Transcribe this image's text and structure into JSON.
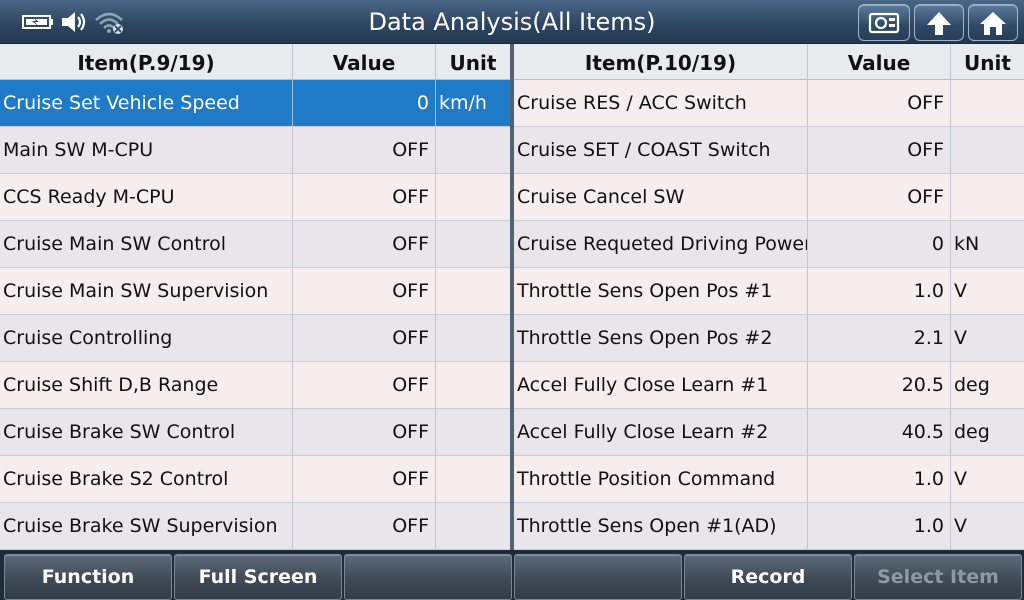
{
  "title": "Data Analysis(All Items)",
  "status_icons": [
    "battery-icon",
    "speaker-icon",
    "wifi-icon"
  ],
  "toolbar_icons": [
    "screenshot-icon",
    "up-arrow-icon",
    "home-icon"
  ],
  "colors": {
    "selected_row": "#1f7bc8",
    "title_bar": "#2e4763",
    "disabled_text": "#8f98a3"
  },
  "left_table": {
    "headers": {
      "item": "Item(P.9/19)",
      "value": "Value",
      "unit": "Unit"
    },
    "rows": [
      {
        "name": "Cruise Set Vehicle Speed",
        "value": "0",
        "unit": "km/h",
        "selected": true
      },
      {
        "name": "Main SW M-CPU",
        "value": "OFF",
        "unit": ""
      },
      {
        "name": "CCS Ready M-CPU",
        "value": "OFF",
        "unit": ""
      },
      {
        "name": "Cruise Main SW Control",
        "value": "OFF",
        "unit": ""
      },
      {
        "name": "Cruise Main SW Supervision",
        "value": "OFF",
        "unit": ""
      },
      {
        "name": "Cruise Controlling",
        "value": "OFF",
        "unit": ""
      },
      {
        "name": "Cruise Shift D,B Range",
        "value": "OFF",
        "unit": ""
      },
      {
        "name": "Cruise Brake SW Control",
        "value": "OFF",
        "unit": ""
      },
      {
        "name": "Cruise Brake S2 Control",
        "value": "OFF",
        "unit": ""
      },
      {
        "name": "Cruise Brake SW Supervision",
        "value": "OFF",
        "unit": ""
      }
    ]
  },
  "right_table": {
    "headers": {
      "item": "Item(P.10/19)",
      "value": "Value",
      "unit": "Unit"
    },
    "rows": [
      {
        "name": "Cruise RES / ACC Switch",
        "value": "OFF",
        "unit": ""
      },
      {
        "name": "Cruise SET / COAST Switch",
        "value": "OFF",
        "unit": ""
      },
      {
        "name": "Cruise Cancel SW",
        "value": "OFF",
        "unit": ""
      },
      {
        "name": "Cruise Requeted Driving Power",
        "value": "0",
        "unit": "kN"
      },
      {
        "name": "Throttle Sens Open Pos #1",
        "value": "1.0",
        "unit": "V"
      },
      {
        "name": "Throttle Sens Open Pos #2",
        "value": "2.1",
        "unit": "V"
      },
      {
        "name": "Accel Fully Close Learn #1",
        "value": "20.5",
        "unit": "deg"
      },
      {
        "name": "Accel Fully Close Learn #2",
        "value": "40.5",
        "unit": "deg"
      },
      {
        "name": "Throttle Position Command",
        "value": "1.0",
        "unit": "V"
      },
      {
        "name": "Throttle Sens Open #1(AD)",
        "value": "1.0",
        "unit": "V"
      }
    ]
  },
  "bottom_buttons": [
    {
      "label": "Function",
      "enabled": true
    },
    {
      "label": "Full Screen",
      "enabled": true
    },
    {
      "label": "",
      "enabled": true
    },
    {
      "label": "",
      "enabled": true
    },
    {
      "label": "Record",
      "enabled": true
    },
    {
      "label": "Select Item",
      "enabled": false
    }
  ]
}
